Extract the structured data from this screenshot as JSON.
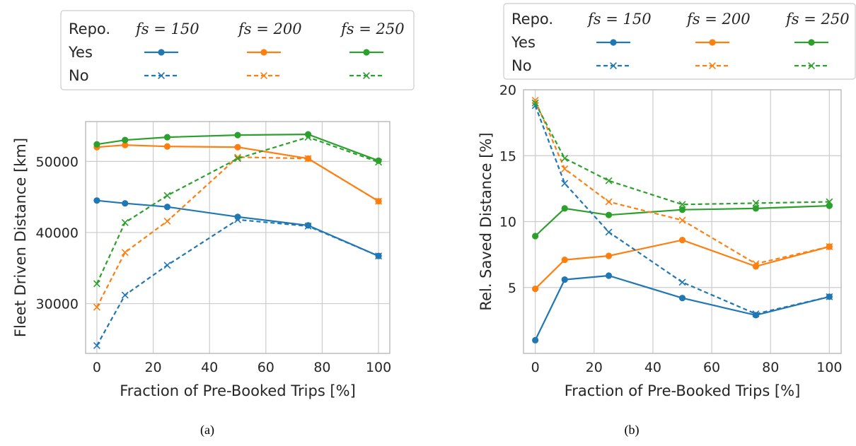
{
  "colors": {
    "fs150": "#1f77b4",
    "fs200": "#ff7f0e",
    "fs250": "#2ca02c",
    "grid": "#cccccc",
    "axis": "#bdbdbd"
  },
  "legend": {
    "header": "Repo.",
    "rows": [
      "Yes",
      "No"
    ],
    "columns": [
      "fs = 150",
      "fs = 200",
      "fs = 250"
    ]
  },
  "captions": [
    "(a)",
    "(b)"
  ],
  "chart_data": [
    {
      "type": "line",
      "xlabel": "Fraction of Pre-Booked Trips [%]",
      "ylabel": "Fleet Driven Distance [km]",
      "x": [
        0,
        10,
        25,
        50,
        75,
        100
      ],
      "xlim": [
        -4,
        104
      ],
      "ylim": [
        23000,
        55600
      ],
      "xticks": [
        0,
        20,
        40,
        60,
        80,
        100
      ],
      "yticks": [
        30000,
        40000,
        50000
      ],
      "grid": true,
      "series": [
        {
          "fs": "150",
          "repo": "Yes",
          "color": "fs150",
          "style": "solid",
          "marker": "circle",
          "values": [
            44500,
            44100,
            43600,
            42200,
            41000,
            36700
          ]
        },
        {
          "fs": "200",
          "repo": "Yes",
          "color": "fs200",
          "style": "solid",
          "marker": "circle",
          "values": [
            52000,
            52300,
            52100,
            52000,
            50400,
            44400
          ]
        },
        {
          "fs": "250",
          "repo": "Yes",
          "color": "fs250",
          "style": "solid",
          "marker": "circle",
          "values": [
            52400,
            53000,
            53400,
            53700,
            53800,
            50100
          ]
        },
        {
          "fs": "150",
          "repo": "No",
          "color": "fs150",
          "style": "dashed",
          "marker": "x",
          "values": [
            24100,
            31200,
            35400,
            41800,
            40900,
            36700
          ]
        },
        {
          "fs": "200",
          "repo": "No",
          "color": "fs200",
          "style": "dashed",
          "marker": "x",
          "values": [
            29500,
            37200,
            41600,
            50600,
            50400,
            44400
          ]
        },
        {
          "fs": "250",
          "repo": "No",
          "color": "fs250",
          "style": "dashed",
          "marker": "x",
          "values": [
            32800,
            41400,
            45200,
            50400,
            53400,
            49900
          ]
        }
      ]
    },
    {
      "type": "line",
      "xlabel": "Fraction of Pre-Booked Trips [%]",
      "ylabel": "Rel. Saved Distance [%]",
      "x": [
        0,
        10,
        25,
        50,
        75,
        100
      ],
      "xlim": [
        -4,
        104
      ],
      "ylim": [
        0,
        20
      ],
      "xticks": [
        0,
        20,
        40,
        60,
        80,
        100
      ],
      "yticks": [
        5,
        10,
        15,
        20
      ],
      "grid": true,
      "series": [
        {
          "fs": "150",
          "repo": "Yes",
          "color": "fs150",
          "style": "solid",
          "marker": "circle",
          "values": [
            1.0,
            5.6,
            5.9,
            4.2,
            2.9,
            4.3
          ]
        },
        {
          "fs": "200",
          "repo": "Yes",
          "color": "fs200",
          "style": "solid",
          "marker": "circle",
          "values": [
            4.9,
            7.1,
            7.4,
            8.6,
            6.6,
            8.1
          ]
        },
        {
          "fs": "250",
          "repo": "Yes",
          "color": "fs250",
          "style": "solid",
          "marker": "circle",
          "values": [
            8.9,
            11.0,
            10.5,
            10.9,
            11.0,
            11.2
          ]
        },
        {
          "fs": "150",
          "repo": "No",
          "color": "fs150",
          "style": "dashed",
          "marker": "x",
          "values": [
            18.8,
            12.9,
            9.2,
            5.4,
            3.0,
            4.3
          ]
        },
        {
          "fs": "200",
          "repo": "No",
          "color": "fs200",
          "style": "dashed",
          "marker": "x",
          "values": [
            19.2,
            14.0,
            11.5,
            10.1,
            6.8,
            8.1
          ]
        },
        {
          "fs": "250",
          "repo": "No",
          "color": "fs250",
          "style": "dashed",
          "marker": "x",
          "values": [
            19.0,
            14.8,
            13.1,
            11.3,
            11.4,
            11.5
          ]
        }
      ]
    }
  ]
}
